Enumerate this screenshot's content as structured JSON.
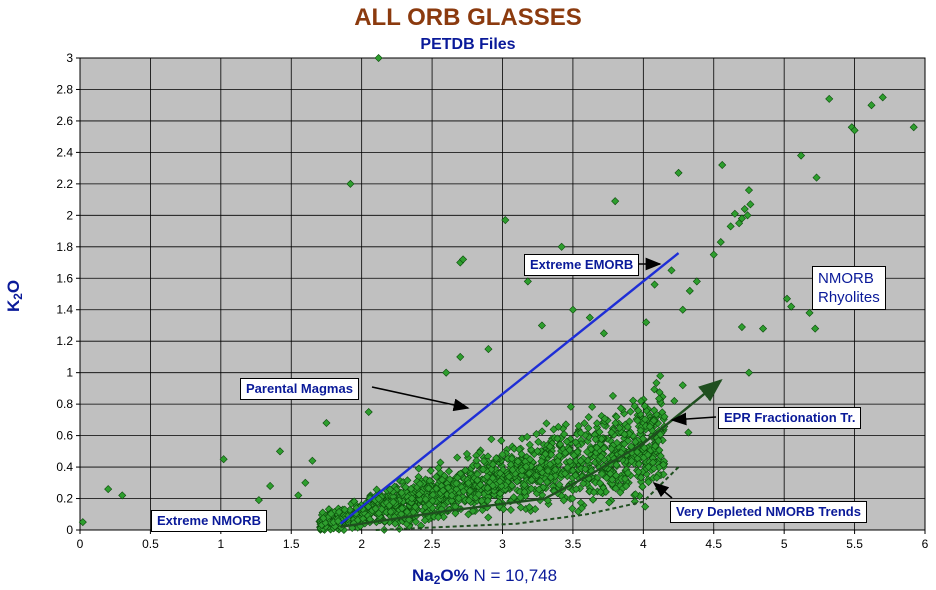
{
  "chart_data": {
    "type": "scatter",
    "title": "ALL ORB GLASSES",
    "subtitle": "PETDB Files",
    "xlabel": {
      "prefix": "Na",
      "sub": "2",
      "suffix": "O%",
      "note": "N = 10,748"
    },
    "ylabel": {
      "prefix": "K",
      "sub": "2",
      "suffix": "O"
    },
    "xlim": [
      0,
      6
    ],
    "ylim": [
      0,
      3
    ],
    "x_ticks": [
      "0",
      "0.5",
      "1",
      "1.5",
      "2",
      "2.5",
      "3",
      "3.5",
      "4",
      "4.5",
      "5",
      "5.5",
      "6"
    ],
    "y_ticks": [
      "0",
      "0.2",
      "0.4",
      "0.6",
      "0.8",
      "1",
      "1.2",
      "1.4",
      "1.6",
      "1.8",
      "2",
      "2.2",
      "2.4",
      "2.6",
      "2.8",
      "3"
    ],
    "grid": true,
    "plot_bg": "#C0C0C0",
    "marker_color": "#2E9E2E",
    "marker": "diamond",
    "n_points": "10,748",
    "outliers": [
      [
        0.02,
        0.05
      ],
      [
        0.2,
        0.26
      ],
      [
        0.3,
        0.22
      ],
      [
        1.02,
        0.45
      ],
      [
        1.27,
        0.19
      ],
      [
        1.35,
        0.28
      ],
      [
        1.42,
        0.5
      ],
      [
        1.55,
        0.22
      ],
      [
        1.6,
        0.3
      ],
      [
        1.65,
        0.44
      ],
      [
        1.75,
        0.68
      ],
      [
        1.92,
        2.2
      ],
      [
        2.12,
        3.0
      ],
      [
        2.7,
        1.7
      ],
      [
        2.72,
        1.72
      ],
      [
        3.02,
        1.97
      ],
      [
        3.18,
        1.58
      ],
      [
        3.42,
        1.8
      ],
      [
        3.8,
        2.09
      ],
      [
        4.02,
        1.32
      ],
      [
        4.08,
        1.56
      ],
      [
        4.2,
        1.65
      ],
      [
        4.25,
        2.27
      ],
      [
        4.28,
        1.4
      ],
      [
        4.33,
        1.52
      ],
      [
        4.38,
        1.58
      ],
      [
        4.5,
        1.75
      ],
      [
        4.55,
        1.83
      ],
      [
        4.56,
        2.32
      ],
      [
        4.62,
        1.93
      ],
      [
        4.65,
        2.01
      ],
      [
        4.68,
        1.95
      ],
      [
        4.7,
        1.98
      ],
      [
        4.72,
        2.04
      ],
      [
        4.74,
        2.0
      ],
      [
        4.75,
        2.16
      ],
      [
        4.76,
        2.07
      ],
      [
        4.7,
        1.29
      ],
      [
        4.75,
        1.0
      ],
      [
        4.85,
        1.28
      ],
      [
        5.02,
        1.47
      ],
      [
        5.05,
        1.42
      ],
      [
        5.12,
        2.38
      ],
      [
        5.18,
        1.38
      ],
      [
        5.22,
        1.28
      ],
      [
        5.23,
        2.24
      ],
      [
        5.32,
        2.74
      ],
      [
        5.48,
        2.56
      ],
      [
        5.5,
        2.54
      ],
      [
        5.62,
        2.7
      ],
      [
        5.7,
        2.75
      ],
      [
        5.92,
        2.56
      ],
      [
        4.12,
        0.98
      ],
      [
        4.22,
        0.82
      ],
      [
        4.28,
        0.92
      ],
      [
        4.15,
        0.72
      ],
      [
        4.32,
        0.62
      ],
      [
        3.5,
        1.4
      ],
      [
        3.62,
        1.35
      ],
      [
        3.72,
        1.25
      ],
      [
        3.28,
        1.3
      ],
      [
        2.6,
        1.0
      ],
      [
        2.7,
        1.1
      ],
      [
        2.9,
        1.15
      ],
      [
        1.85,
        0.9
      ],
      [
        2.05,
        0.75
      ]
    ],
    "trend_lines": [
      {
        "name": "Extreme EMORB",
        "color": "#1E2ED6",
        "points": [
          [
            1.85,
            0.04
          ],
          [
            4.25,
            1.76
          ]
        ]
      },
      {
        "name": "EPR Fractionation Tr.",
        "color": "#1F4F1F",
        "points": [
          [
            1.85,
            0.02
          ],
          [
            2.6,
            0.12
          ],
          [
            3.3,
            0.2
          ],
          [
            3.6,
            0.34
          ],
          [
            4.0,
            0.55
          ],
          [
            4.55,
            0.95
          ]
        ]
      },
      {
        "name": "Very Depleted NMORB Trends",
        "color": "#1F4F1F",
        "dashed": true,
        "points": [
          [
            2.1,
            0.0
          ],
          [
            2.6,
            0.02
          ],
          [
            3.1,
            0.04
          ],
          [
            3.6,
            0.1
          ],
          [
            4.0,
            0.18
          ],
          [
            4.25,
            0.4
          ]
        ]
      }
    ],
    "annotations": [
      {
        "key": "extreme_emorb",
        "text": "Extreme EMORB"
      },
      {
        "key": "parental",
        "text": "Parental Magmas"
      },
      {
        "key": "epr",
        "text": "EPR Fractionation Tr."
      },
      {
        "key": "depleted",
        "text": "Very Depleted NMORB Trends"
      },
      {
        "key": "extreme_nmorb",
        "text": "Extreme NMORB"
      },
      {
        "key": "rhyolites",
        "text": "NMORB Rhyolites"
      }
    ]
  },
  "labels": {
    "extreme_emorb": "Extreme EMORB",
    "parental": "Parental Magmas",
    "epr": "EPR Fractionation Tr.",
    "depleted": "Very Depleted NMORB Trends",
    "extreme_nmorb": "Extreme NMORB",
    "rhyolites_line1": "NMORB",
    "rhyolites_line2": "Rhyolites"
  }
}
